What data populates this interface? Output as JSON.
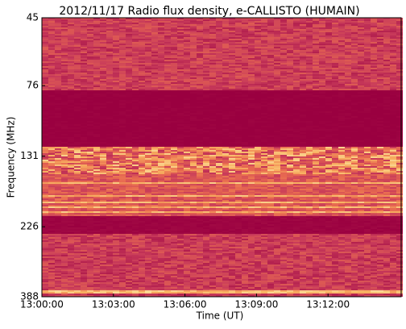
{
  "chart_data": {
    "type": "spectrogram",
    "title": "2012/11/17  Radio flux density, e-CALLISTO (HUMAIN)",
    "xlabel": "Time (UT)",
    "ylabel": "Frequency (MHz)",
    "xlim": [
      "13:00:00",
      "13:15:04"
    ],
    "xticks": [
      "13:00:00",
      "13:03:00",
      "13:06:00",
      "13:09:00",
      "13:12:00"
    ],
    "ylim": [
      388,
      45
    ],
    "yticks": [
      45,
      76,
      131,
      226,
      388
    ],
    "ylog": true
  }
}
